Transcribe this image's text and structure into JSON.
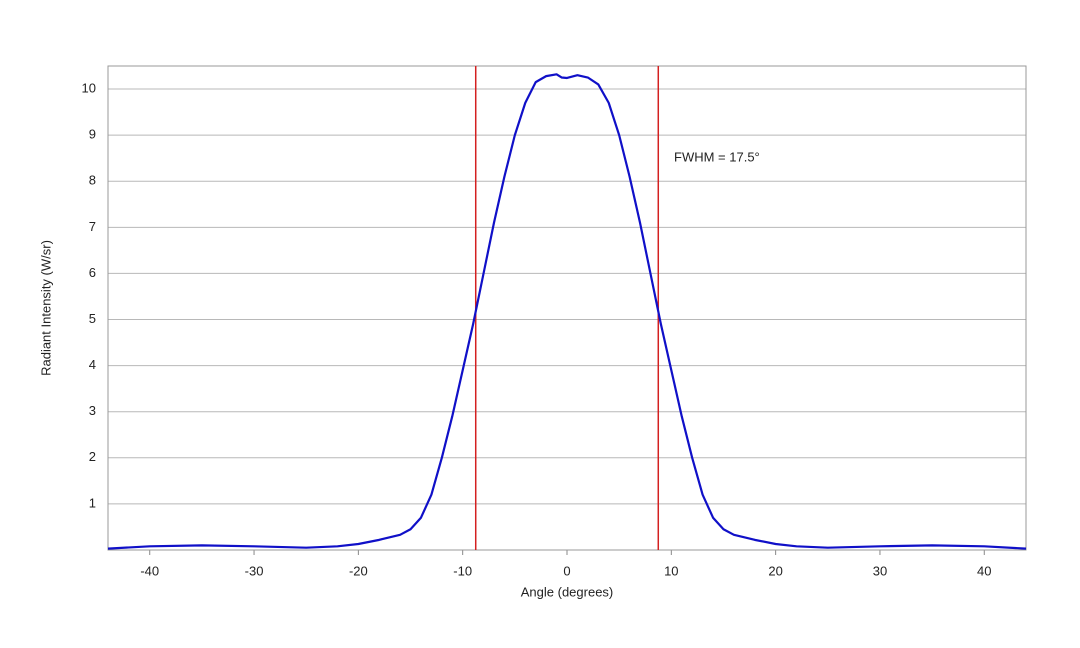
{
  "chart_data": {
    "type": "line",
    "xlabel": "Angle (degrees)",
    "ylabel": "Radiant Intensity (W/sr)",
    "annotation": "FWHM = 17.5°",
    "x": [
      -44,
      -40,
      -35,
      -30,
      -25,
      -22,
      -20,
      -18,
      -16,
      -15,
      -14,
      -13,
      -12,
      -11,
      -10,
      -9,
      -8,
      -7,
      -6,
      -5,
      -4,
      -3,
      -2,
      -1,
      -0.5,
      0,
      1,
      2,
      3,
      4,
      5,
      6,
      7,
      8,
      9,
      10,
      11,
      12,
      13,
      14,
      15,
      16,
      18,
      20,
      22,
      25,
      30,
      35,
      40,
      44
    ],
    "series": [
      {
        "color": "#1010c8",
        "values": [
          0.03,
          0.08,
          0.1,
          0.08,
          0.05,
          0.08,
          0.13,
          0.22,
          0.33,
          0.45,
          0.7,
          1.2,
          2.0,
          2.9,
          3.9,
          4.9,
          6.0,
          7.1,
          8.1,
          9.0,
          9.7,
          10.15,
          10.28,
          10.32,
          10.25,
          10.24,
          10.3,
          10.25,
          10.1,
          9.7,
          9.0,
          8.1,
          7.1,
          6.0,
          4.9,
          3.9,
          2.9,
          2.0,
          1.2,
          0.7,
          0.45,
          0.33,
          0.22,
          0.13,
          0.08,
          0.05,
          0.08,
          0.1,
          0.08,
          0.03
        ]
      }
    ],
    "vlines": {
      "color": "#d42020",
      "x": [
        -8.75,
        8.75
      ]
    },
    "xlim": [
      -44,
      44
    ],
    "xticks": [
      -40,
      -30,
      -20,
      -10,
      0,
      10,
      20,
      30,
      40
    ],
    "ylim": [
      0,
      10.5
    ],
    "yticks": [
      1,
      2,
      3,
      4,
      5,
      6,
      7,
      8,
      9,
      10
    ],
    "grid": true
  }
}
